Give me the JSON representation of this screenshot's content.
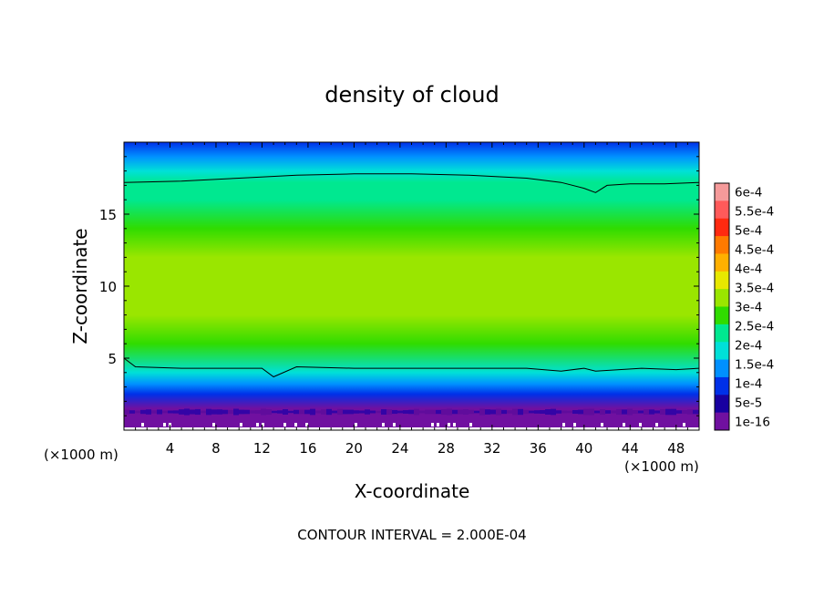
{
  "chart_data": {
    "type": "heatmap",
    "title": "density of cloud",
    "xlabel": "X-coordinate",
    "ylabel": "Z-coordinate",
    "x_unit_left": "(×1000 m)",
    "x_unit_right": "(×1000 m)",
    "footer": "CONTOUR INTERVAL = 2.000E-04",
    "xlim": [
      0,
      50
    ],
    "ylim": [
      0,
      20
    ],
    "xticks": [
      4,
      8,
      12,
      16,
      20,
      24,
      28,
      32,
      36,
      40,
      44,
      48
    ],
    "yticks": [
      5,
      10,
      15
    ],
    "colorbar": {
      "labels": [
        "6e-4",
        "5.5e-4",
        "5e-4",
        "4.5e-4",
        "4e-4",
        "3.5e-4",
        "3e-4",
        "2.5e-4",
        "2e-4",
        "1.5e-4",
        "1e-4",
        "5e-5",
        "1e-16"
      ],
      "colors": [
        "#f59a9a",
        "#ff5a5a",
        "#ff2a10",
        "#ff7a00",
        "#ffb000",
        "#e8e800",
        "#9ae600",
        "#30dc00",
        "#00e890",
        "#00e0d8",
        "#0090ff",
        "#0030e8",
        "#1800a0",
        "#7010a0"
      ]
    },
    "field_profile": {
      "z": [
        0.2,
        1.0,
        1.5,
        2.5,
        3.2,
        4.0,
        6.0,
        8.0,
        10.0,
        12.0,
        14.0,
        16.0,
        17.2,
        18.0,
        19.0,
        20.0
      ],
      "density": [
        0,
        1e-06,
        1e-05,
        8e-05,
        0.00014,
        0.00019,
        0.00027,
        0.0003,
        0.00032,
        0.0003,
        0.00028,
        0.00025,
        0.00021,
        0.00018,
        0.00013,
        8e-05
      ]
    },
    "contour_lines": [
      {
        "level": "2.000E-04",
        "x": [
          0,
          1,
          5,
          12,
          13,
          15,
          20,
          25,
          30,
          35,
          38,
          40,
          41,
          45,
          48,
          50
        ],
        "z": [
          5.0,
          4.4,
          4.3,
          4.3,
          3.7,
          4.4,
          4.3,
          4.3,
          4.3,
          4.3,
          4.1,
          4.3,
          4.1,
          4.3,
          4.2,
          4.3
        ]
      },
      {
        "level": "2.000E-04",
        "x": [
          0,
          5,
          10,
          15,
          20,
          25,
          30,
          35,
          38,
          40,
          41,
          42,
          44,
          47,
          50
        ],
        "z": [
          17.2,
          17.3,
          17.5,
          17.7,
          17.8,
          17.8,
          17.7,
          17.5,
          17.2,
          16.8,
          16.5,
          17.0,
          17.1,
          17.1,
          17.2
        ]
      }
    ]
  }
}
